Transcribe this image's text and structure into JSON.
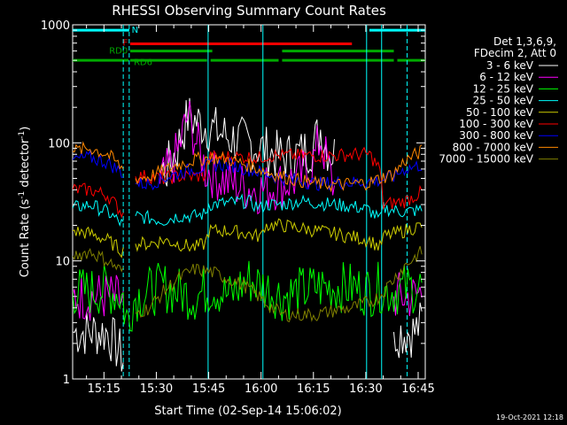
{
  "chart_data": {
    "type": "line",
    "title": "RHESSI Observing Summary Count Rates",
    "xlabel": "Start Time (02-Sep-14 15:06:02)",
    "ylabel_main": "Count Rate (s",
    "ylabel_sup1": "-1",
    "ylabel_mid": " detector",
    "ylabel_sup2": "-1",
    "ylabel_end": ")",
    "yscale": "log",
    "ylim": [
      1,
      1000
    ],
    "xlim_minutes": [
      0,
      101
    ],
    "x_ticks": [
      {
        "label": "15:15",
        "minutes": 8.97
      },
      {
        "label": "15:30",
        "minutes": 23.97
      },
      {
        "label": "15:45",
        "minutes": 38.97
      },
      {
        "label": "16:00",
        "minutes": 53.97
      },
      {
        "label": "16:15",
        "minutes": 68.97
      },
      {
        "label": "16:30",
        "minutes": 83.97
      },
      {
        "label": "16:45",
        "minutes": 98.97
      }
    ],
    "y_ticks": [
      {
        "label": "1",
        "value": 1
      },
      {
        "label": "10",
        "value": 10
      },
      {
        "label": "100",
        "value": 100
      },
      {
        "label": "1000",
        "value": 1000
      }
    ],
    "legend_header": [
      "Det 1,3,6,9,",
      "FDecim 2, Att 0"
    ],
    "legend_placement": "right",
    "series": [
      {
        "name": "3 - 6 keV",
        "color": "#ffffff",
        "x": [
          0,
          5,
          10,
          14.5,
          15,
          18,
          22,
          25,
          27,
          30,
          33,
          38,
          45,
          50,
          54,
          60,
          65,
          69,
          71,
          73,
          75,
          80,
          85,
          88,
          92,
          95,
          98,
          100
        ],
        "y": [
          2.5,
          2.5,
          2.5,
          1.5,
          null,
          null,
          null,
          55,
          60,
          90,
          165,
          140,
          110,
          100,
          90,
          75,
          80,
          95,
          130,
          90,
          80,
          null,
          null,
          null,
          2.5,
          2.5,
          2.5,
          3
        ]
      },
      {
        "name": "6 - 12 keV",
        "color": "#ff00ff",
        "x": [
          0,
          5,
          10,
          14.5,
          15,
          18,
          22,
          25,
          27,
          30,
          33,
          38,
          45,
          50,
          54,
          60,
          65,
          69,
          71,
          73,
          75,
          80,
          85,
          88,
          92,
          95,
          98,
          100
        ],
        "y": [
          5,
          5,
          5,
          4.5,
          null,
          null,
          null,
          45,
          55,
          80,
          170,
          60,
          45,
          42,
          40,
          45,
          50,
          70,
          110,
          65,
          40,
          null,
          null,
          null,
          5,
          5,
          5,
          5.5
        ]
      },
      {
        "name": "12 - 25 keV",
        "color": "#00ff00",
        "x": [
          0,
          5,
          10,
          14.5,
          15,
          18,
          22,
          26,
          30,
          35,
          40,
          45,
          50,
          55,
          60,
          65,
          70,
          75,
          80,
          85,
          88,
          90,
          95,
          100
        ],
        "y": [
          5.5,
          5.5,
          5.8,
          5,
          3,
          5,
          5.5,
          6,
          5.5,
          5,
          6,
          5,
          7,
          6,
          5,
          5.5,
          6,
          6,
          6,
          5.5,
          6,
          5.5,
          5.8,
          6
        ]
      },
      {
        "name": "25 - 50 keV",
        "color": "#00ffff",
        "x": [
          0,
          5,
          10,
          14.5,
          15,
          18,
          22,
          26,
          30,
          35,
          38,
          39,
          45,
          50,
          54,
          55,
          60,
          65,
          70,
          75,
          80,
          85,
          88,
          89,
          95,
          100
        ],
        "y": [
          28,
          30,
          26,
          20,
          null,
          24,
          23,
          22,
          24,
          24,
          25,
          30,
          31,
          32,
          28,
          30,
          30,
          32,
          31,
          30,
          29,
          27,
          22,
          28,
          26,
          27
        ]
      },
      {
        "name": "50 - 100 keV",
        "color": "#cccc00",
        "x": [
          0,
          5,
          10,
          14.5,
          15,
          18,
          22,
          26,
          30,
          35,
          38,
          39,
          45,
          50,
          54,
          55,
          60,
          65,
          70,
          75,
          80,
          85,
          88,
          89,
          95,
          100
        ],
        "y": [
          18,
          17,
          15,
          12,
          null,
          14,
          14,
          15,
          14,
          13,
          14,
          18,
          18,
          17,
          16,
          20,
          20,
          19,
          18,
          17,
          16,
          15,
          13,
          16,
          18,
          20
        ]
      },
      {
        "name": "100 - 300 keV",
        "color": "#ff0000",
        "x": [
          0,
          5,
          10,
          14.5,
          15,
          18,
          22,
          26,
          30,
          35,
          38,
          39,
          45,
          50,
          54,
          55,
          60,
          65,
          70,
          75,
          80,
          85,
          88,
          89,
          95,
          100
        ],
        "y": [
          40,
          40,
          36,
          25,
          null,
          52,
          52,
          50,
          52,
          52,
          53,
          75,
          76,
          76,
          74,
          78,
          78,
          78,
          78,
          78,
          80,
          80,
          60,
          30,
          32,
          38
        ]
      },
      {
        "name": "300 - 800 keV",
        "color": "#0000ff",
        "x": [
          0,
          5,
          10,
          14.5,
          15,
          18,
          22,
          26,
          30,
          35,
          40,
          45,
          50,
          55,
          60,
          65,
          70,
          75,
          80,
          85,
          88,
          92,
          95,
          100
        ],
        "y": [
          72,
          75,
          68,
          55,
          null,
          45,
          45,
          50,
          55,
          60,
          65,
          65,
          60,
          55,
          50,
          48,
          45,
          46,
          46,
          47,
          48,
          52,
          60,
          65
        ]
      },
      {
        "name": "800 - 7000 keV",
        "color": "#ff8800",
        "x": [
          0,
          5,
          10,
          14.5,
          15,
          18,
          22,
          26,
          30,
          35,
          40,
          45,
          50,
          55,
          60,
          65,
          70,
          75,
          80,
          85,
          88,
          92,
          95,
          100
        ],
        "y": [
          85,
          90,
          80,
          60,
          null,
          50,
          52,
          58,
          65,
          72,
          75,
          72,
          65,
          58,
          52,
          48,
          45,
          44,
          45,
          46,
          50,
          55,
          70,
          85
        ]
      },
      {
        "name": "7000 - 15000 keV",
        "color": "#808000",
        "x": [
          0,
          5,
          10,
          14.5,
          15,
          18,
          22,
          26,
          30,
          35,
          40,
          45,
          50,
          55,
          60,
          65,
          70,
          75,
          80,
          85,
          88,
          90,
          95,
          100
        ],
        "y": [
          11,
          12,
          10,
          8,
          null,
          3.6,
          4,
          5.5,
          7,
          8.5,
          8,
          7,
          6,
          4.5,
          3.5,
          3.5,
          3.5,
          3.8,
          4,
          4.5,
          5,
          6,
          9,
          12
        ]
      }
    ],
    "annotations": [
      {
        "text": "N",
        "color": "#00ffff"
      },
      {
        "text": "F",
        "color": "#ff0000"
      },
      {
        "text": "RD0",
        "color": "#00aa00"
      },
      {
        "text": "RD6",
        "color": "#00aa00"
      }
    ],
    "flag_bars": [
      {
        "label": "N",
        "color": "#00ffff",
        "value": 900,
        "segments": [
          [
            0,
            16.2
          ],
          [
            85,
            101
          ]
        ]
      },
      {
        "label": "F",
        "color": "#ff0000",
        "value": 690,
        "segments": [
          [
            16.5,
            80
          ]
        ]
      },
      {
        "label": "RD0",
        "color": "#00aa00",
        "value": 600,
        "segments": [
          [
            16.5,
            40
          ],
          [
            60,
            92
          ]
        ]
      },
      {
        "label": "RD6",
        "color": "#00aa00",
        "value": 500,
        "segments": [
          [
            0,
            16
          ],
          [
            16.5,
            38.5
          ],
          [
            39.5,
            59
          ],
          [
            60,
            92
          ],
          [
            93,
            101
          ]
        ]
      }
    ],
    "vertical_markers": {
      "color": "#00ffff",
      "minutes": [
        14.5,
        16.2,
        38.8,
        54.5,
        84.2,
        88.5,
        95.8
      ],
      "dashed": [
        true,
        true,
        false,
        false,
        false,
        false,
        true
      ]
    },
    "timestamp": "19-Oct-2021 12:18"
  }
}
